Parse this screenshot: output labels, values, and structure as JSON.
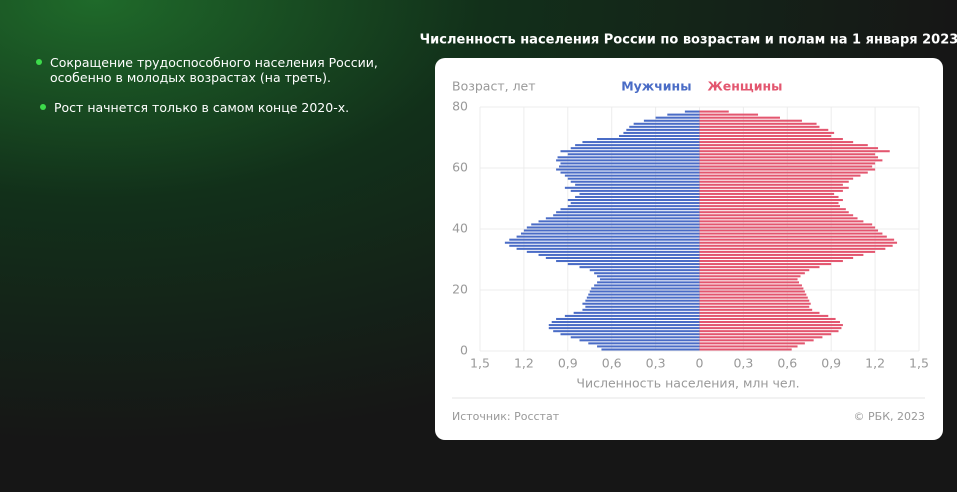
{
  "bullets": [
    "Сокращение трудоспособного  населения России, особенно в молодых возрастах (на треть).",
    "Рост начнется только в самом конце 2020-х."
  ],
  "chart_data": {
    "type": "pyramid",
    "title": "Численность населения России по возрастам и полам на 1 января 2023",
    "y_label": "Возраст, лет",
    "x_label": "Численность населения, млн чел.",
    "source": "Источник: Росстат",
    "copyright": "© РБК, 2023",
    "y": [
      0,
      1,
      2,
      3,
      4,
      5,
      6,
      7,
      8,
      9,
      10,
      11,
      12,
      13,
      14,
      15,
      16,
      17,
      18,
      19,
      20,
      21,
      22,
      23,
      24,
      25,
      26,
      27,
      28,
      29,
      30,
      31,
      32,
      33,
      34,
      35,
      36,
      37,
      38,
      39,
      40,
      41,
      42,
      43,
      44,
      45,
      46,
      47,
      48,
      49,
      50,
      51,
      52,
      53,
      54,
      55,
      56,
      57,
      58,
      59,
      60,
      61,
      62,
      63,
      64,
      65,
      66,
      67,
      68,
      69,
      70,
      71,
      72,
      73,
      74,
      75,
      76,
      77,
      78
    ],
    "series": [
      {
        "name": "Мужчины",
        "color": "#4a6cc6",
        "side": "left",
        "values": [
          0.67,
          0.7,
          0.76,
          0.82,
          0.88,
          0.95,
          1.0,
          1.03,
          1.03,
          1.01,
          0.98,
          0.92,
          0.86,
          0.8,
          0.78,
          0.8,
          0.78,
          0.77,
          0.76,
          0.75,
          0.74,
          0.72,
          0.7,
          0.68,
          0.7,
          0.72,
          0.75,
          0.82,
          0.9,
          0.98,
          1.05,
          1.1,
          1.18,
          1.25,
          1.3,
          1.33,
          1.3,
          1.25,
          1.22,
          1.2,
          1.18,
          1.15,
          1.1,
          1.05,
          1.0,
          0.98,
          0.95,
          0.9,
          0.88,
          0.9,
          0.85,
          0.82,
          0.88,
          0.92,
          0.85,
          0.88,
          0.9,
          0.92,
          0.95,
          0.98,
          0.96,
          0.95,
          0.98,
          0.97,
          0.9,
          0.95,
          0.88,
          0.85,
          0.8,
          0.7,
          0.55,
          0.52,
          0.5,
          0.48,
          0.45,
          0.38,
          0.3,
          0.22,
          0.1
        ]
      },
      {
        "name": "Женщины",
        "color": "#e3566f",
        "side": "right",
        "values": [
          0.63,
          0.67,
          0.72,
          0.78,
          0.84,
          0.9,
          0.95,
          0.97,
          0.98,
          0.96,
          0.93,
          0.88,
          0.82,
          0.77,
          0.75,
          0.76,
          0.75,
          0.74,
          0.73,
          0.72,
          0.71,
          0.7,
          0.68,
          0.67,
          0.69,
          0.72,
          0.75,
          0.82,
          0.9,
          0.98,
          1.05,
          1.12,
          1.2,
          1.27,
          1.32,
          1.35,
          1.33,
          1.28,
          1.25,
          1.22,
          1.2,
          1.18,
          1.12,
          1.08,
          1.05,
          1.02,
          1.0,
          0.96,
          0.95,
          0.98,
          0.95,
          0.92,
          0.98,
          1.02,
          0.98,
          1.02,
          1.05,
          1.1,
          1.15,
          1.2,
          1.18,
          1.2,
          1.25,
          1.22,
          1.2,
          1.3,
          1.22,
          1.15,
          1.05,
          0.98,
          0.9,
          0.92,
          0.88,
          0.82,
          0.8,
          0.7,
          0.55,
          0.4,
          0.2
        ]
      }
    ],
    "xlim": [
      -1.5,
      1.5
    ],
    "xticks": [
      {
        "value": -1.5,
        "label": "1,5"
      },
      {
        "value": -1.2,
        "label": "1,2"
      },
      {
        "value": -0.9,
        "label": "0,9"
      },
      {
        "value": -0.6,
        "label": "0,6"
      },
      {
        "value": -0.3,
        "label": "0,3"
      },
      0,
      {
        "value": 0.3,
        "label": "0,3"
      },
      {
        "value": 0.6,
        "label": "0,6"
      },
      {
        "value": 0.9,
        "label": "0,9"
      },
      {
        "value": 1.2,
        "label": "1,2"
      },
      {
        "value": 1.5,
        "label": "1,5"
      }
    ],
    "ylim": [
      0,
      80
    ],
    "yticks": [
      0,
      20,
      40,
      60,
      80
    ],
    "grid": true
  }
}
